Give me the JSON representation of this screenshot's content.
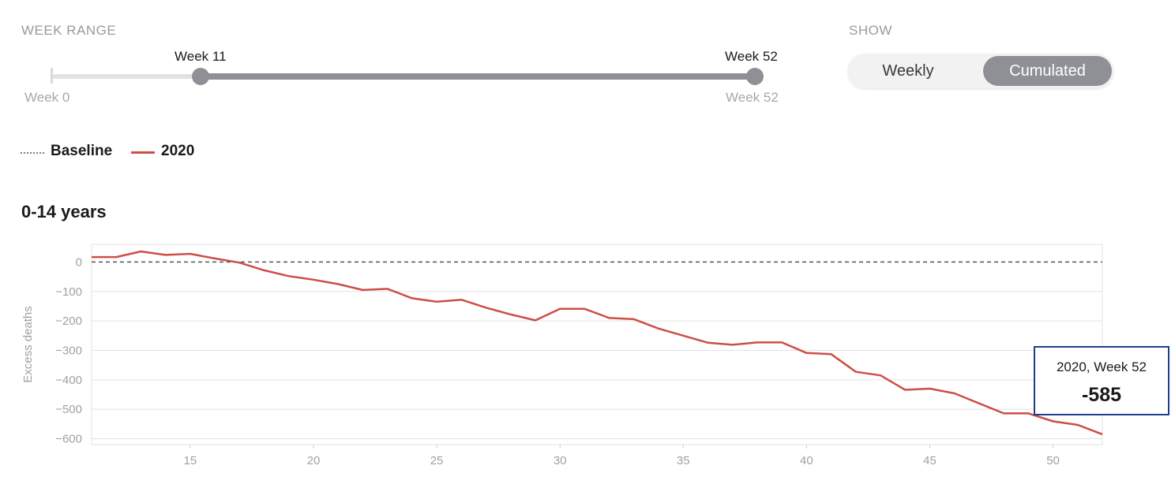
{
  "controls": {
    "week_range_label": "WEEK RANGE",
    "slider": {
      "min_label": "Week 0",
      "max_label": "Week 52",
      "start_value_label": "Week 11",
      "end_value_label": "Week 52",
      "start": 11,
      "end": 52,
      "min": 0,
      "max": 52
    },
    "show_label": "SHOW",
    "toggle": {
      "weekly": "Weekly",
      "cumulated": "Cumulated",
      "selected": "Cumulated"
    }
  },
  "legend": {
    "baseline": "Baseline",
    "series": "2020"
  },
  "colors": {
    "series": "#cd4e47",
    "baseline": "#555555",
    "accent": "#8f9096",
    "tooltip_border": "#1f3d8f"
  },
  "chart_data": {
    "type": "line",
    "title": "0-14 years",
    "ylabel": "Excess deaths",
    "xlabel": "",
    "xlim": [
      11,
      52
    ],
    "ylim": [
      -620,
      60
    ],
    "x_ticks": [
      15,
      20,
      25,
      30,
      35,
      40,
      45,
      50
    ],
    "y_ticks": [
      0,
      -100,
      -200,
      -300,
      -400,
      -500,
      -600
    ],
    "y_tick_labels": [
      "0",
      "−100",
      "−200",
      "−300",
      "−400",
      "−500",
      "−600"
    ],
    "baseline": 0,
    "grid": "horizontal",
    "series": [
      {
        "name": "2020",
        "x": [
          11,
          12,
          13,
          14,
          15,
          16,
          17,
          18,
          19,
          20,
          21,
          22,
          23,
          24,
          25,
          26,
          27,
          28,
          29,
          30,
          31,
          32,
          33,
          34,
          35,
          36,
          37,
          38,
          39,
          40,
          41,
          42,
          43,
          44,
          45,
          46,
          47,
          48,
          49,
          50,
          51,
          52
        ],
        "values": [
          17,
          17,
          36,
          24,
          28,
          12,
          -2,
          -28,
          -48,
          -60,
          -75,
          -95,
          -91,
          -123,
          -135,
          -128,
          -155,
          -178,
          -198,
          -159,
          -159,
          -190,
          -194,
          -226,
          -250,
          -274,
          -281,
          -273,
          -273,
          -309,
          -313,
          -373,
          -385,
          -434,
          -430,
          -446,
          -480,
          -514,
          -514,
          -541,
          -553,
          -585
        ]
      }
    ]
  },
  "tooltip": {
    "label": "2020, Week 52",
    "value": "-585"
  }
}
